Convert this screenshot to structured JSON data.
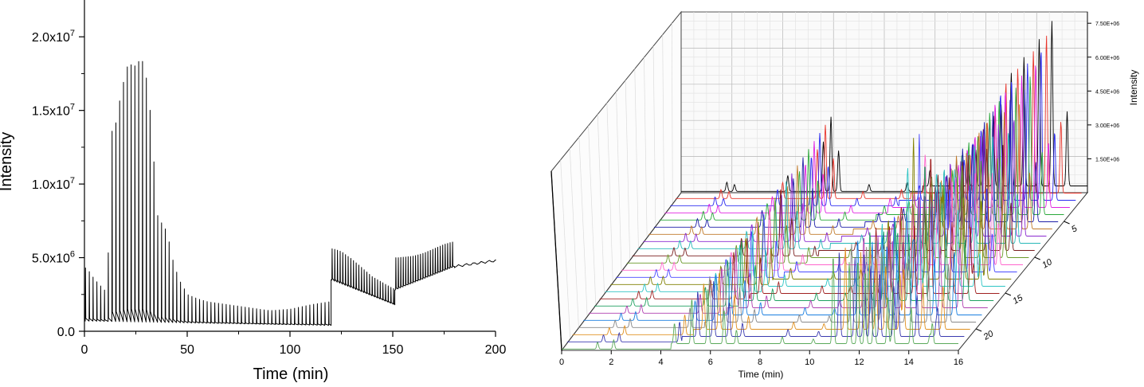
{
  "chart_data": [
    {
      "type": "line",
      "title": "",
      "xlabel": "Time (min)",
      "ylabel": "Intensity",
      "xlim": [
        0,
        200
      ],
      "ylim": [
        0,
        22500000
      ],
      "xticks": [
        0,
        50,
        100,
        150,
        200
      ],
      "xtick_labels": [
        "0",
        "50",
        "100",
        "150",
        "200"
      ],
      "yticks": [
        0,
        5000000,
        10000000,
        15000000,
        20000000
      ],
      "ytick_labels": [
        {
          "mant": "0.0",
          "exp": ""
        },
        {
          "mant": "5.0x10",
          "exp": "6"
        },
        {
          "mant": "1.0x10",
          "exp": "7"
        },
        {
          "mant": "1.5x10",
          "exp": "7"
        },
        {
          "mant": "2.0x10",
          "exp": "7"
        }
      ],
      "series_color": "#000000",
      "segments": [
        {
          "x": [
            0,
            120
          ],
          "baseline": [
            700000,
            400000
          ],
          "peak_interval": 1.85,
          "peaks": [
            [
              1,
              4300000
            ],
            [
              3,
              3900000
            ],
            [
              5,
              3500000
            ],
            [
              7,
              3200000
            ],
            [
              9,
              2900000
            ],
            [
              11,
              2600000
            ],
            [
              13,
              13500000
            ],
            [
              15,
              14000000
            ],
            [
              18,
              16400000
            ],
            [
              21,
              18100000
            ],
            [
              23,
              18100000
            ],
            [
              25,
              18000000
            ],
            [
              27,
              18500000
            ],
            [
              29,
              18200000
            ],
            [
              31,
              16200000
            ],
            [
              33,
              13400000
            ],
            [
              35,
              8000000
            ],
            [
              38,
              7200000
            ],
            [
              40,
              6800000
            ],
            [
              43,
              4800000
            ],
            [
              46,
              3500000
            ],
            [
              50,
              2500000
            ],
            [
              55,
              2200000
            ],
            [
              60,
              2000000
            ],
            [
              70,
              1800000
            ],
            [
              80,
              1600000
            ],
            [
              90,
              1400000
            ],
            [
              100,
              1500000
            ],
            [
              110,
              1800000
            ],
            [
              119,
              2000000
            ]
          ]
        },
        {
          "x": [
            120,
            151
          ],
          "baseline": [
            3500000,
            1800000
          ],
          "peak_interval": 1.3,
          "peaks": [
            [
              121,
              5600000
            ],
            [
              125,
              5400000
            ],
            [
              130,
              4900000
            ],
            [
              135,
              4300000
            ],
            [
              140,
              3700000
            ],
            [
              145,
              3300000
            ],
            [
              150,
              2900000
            ]
          ]
        },
        {
          "x": [
            151,
            180
          ],
          "baseline": [
            2800000,
            4400000
          ],
          "peak_interval": 1.2,
          "peaks": [
            [
              153,
              5000000
            ],
            [
              160,
              5100000
            ],
            [
              165,
              5300000
            ],
            [
              170,
              5600000
            ],
            [
              175,
              5900000
            ],
            [
              180,
              6100000
            ]
          ]
        },
        {
          "x": [
            180,
            200
          ],
          "baseline": [
            4400000,
            4800000
          ],
          "peak_interval": 0,
          "peaks": []
        }
      ]
    },
    {
      "type": "line",
      "subtype": "waterfall-3d",
      "title": "",
      "xlabel": "Time (min)",
      "ylabel": "",
      "zlabel": "Intensity",
      "xlim": [
        0,
        16
      ],
      "xticks": [
        "0",
        "2",
        "4",
        "6",
        "8",
        "10",
        "12",
        "14",
        "16"
      ],
      "depth_ticks": [
        "5",
        "10",
        "15",
        "20"
      ],
      "depth_tick_values": [
        5,
        10,
        15,
        20
      ],
      "depth_range": [
        1,
        23
      ],
      "zlim": [
        0,
        8000000
      ],
      "zticks": [
        "1.50E+06",
        "3.00E+06",
        "4.50E+06",
        "6.00E+06",
        "7.50E+06"
      ],
      "ztick_values": [
        1500000,
        3000000,
        4500000,
        6000000,
        7500000
      ],
      "n_traces": 23,
      "trace_colors": [
        "#000000",
        "#e8342a",
        "#2a2af0",
        "#e022e0",
        "#2aa83a",
        "#1e1ea8",
        "#c07a2a",
        "#8a2ad0",
        "#27b8b8",
        "#7a1e1e",
        "#6a9a2a",
        "#ff66cc",
        "#4a4aff",
        "#808000",
        "#2ec4c4",
        "#a02020",
        "#20a060",
        "#b040b0",
        "#1a7fe0",
        "#888888",
        "#e09020",
        "#3a3ab0",
        "#5aaa5a"
      ],
      "peak_times": [
        1.8,
        2.1,
        4.2,
        5.6,
        5.9,
        6.2,
        7.4,
        8.9,
        9.8,
        11.3,
        11.6,
        11.9,
        12.3,
        12.6,
        13.0,
        13.5,
        14.1,
        14.6,
        15.2
      ],
      "peak_heights_first": [
        400000,
        300000,
        700000,
        2200000,
        3300000,
        1800000,
        300000,
        400000,
        700000,
        800000,
        1600000,
        2500000,
        3100000,
        3600000,
        5000000,
        5700000,
        6500000,
        7300000,
        3300000
      ],
      "peak_heights_last": [
        300000,
        400000,
        900000,
        2000000,
        2400000,
        1500000,
        600000,
        300000,
        200000,
        3900000,
        3600000,
        3200000,
        3700000,
        2700000,
        2400000,
        2100000,
        1600000,
        900000,
        400000
      ],
      "ramp_start_time": [
        9.5,
        4.4
      ]
    }
  ]
}
